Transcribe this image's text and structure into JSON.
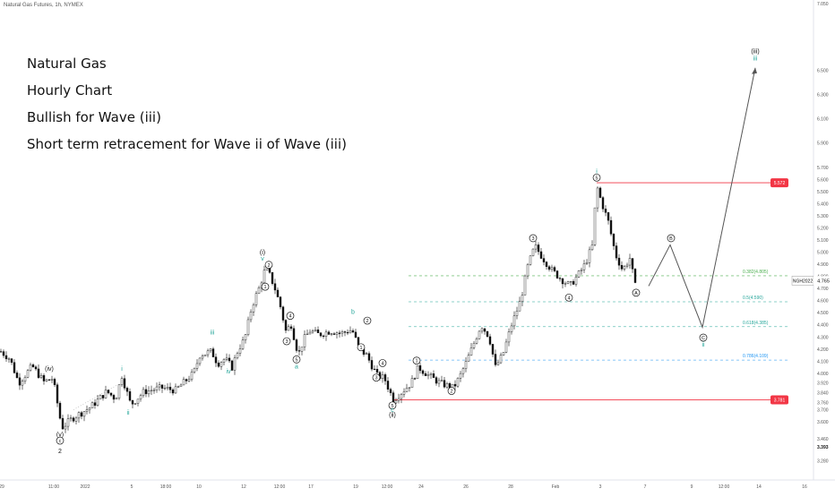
{
  "header": {
    "symbol_line": "Natural Gas Futures, 1h, NYMEX"
  },
  "annotations": [
    "Natural Gas",
    "Hourly Chart",
    "Bullish for Wave (iii)",
    "Short term retracement for Wave ii of Wave (iii)"
  ],
  "colors": {
    "up": "#111111",
    "down": "#111111",
    "red": "#f23645",
    "teal": "#26a69a",
    "blue": "#2196f3",
    "green": "#4caf50",
    "text": "#111111",
    "axis_text": "#555555"
  },
  "chart_data": {
    "type": "candlestick",
    "title": "",
    "xlabel": "",
    "ylabel": "",
    "ylim": [
      3.2,
      7.1
    ],
    "y_ticks": [
      "3.280",
      "3.460",
      "3.600",
      "3.700",
      "3.760",
      "3.840",
      "3.920",
      "4.000",
      "4.100",
      "4.200",
      "4.300",
      "4.400",
      "4.500",
      "4.600",
      "4.700",
      "4.800",
      "4.900",
      "5.000",
      "5.100",
      "5.200",
      "5.300",
      "5.400",
      "5.500",
      "5.600",
      "5.700",
      "5.900",
      "6.100",
      "6.300",
      "6.500",
      "7.050"
    ],
    "y_tick_values": [
      3.28,
      3.46,
      3.6,
      3.7,
      3.76,
      3.84,
      3.92,
      4.0,
      4.1,
      4.2,
      4.3,
      4.4,
      4.5,
      4.6,
      4.7,
      4.8,
      4.9,
      5.0,
      5.1,
      5.2,
      5.3,
      5.4,
      5.5,
      5.6,
      5.7,
      5.9,
      6.1,
      6.3,
      6.5,
      7.05
    ],
    "x_ticks": [
      "29",
      "11:00",
      "2022",
      "5",
      "18:00",
      "10",
      "12",
      "12:00",
      "17",
      "19",
      "12:00",
      "24",
      "26",
      "28",
      "Feb",
      "3",
      "7",
      "9",
      "12:00",
      "14",
      "16"
    ],
    "x_tick_index": [
      2,
      60,
      95,
      147,
      185,
      222,
      272,
      312,
      347,
      397,
      432,
      470,
      520,
      570,
      620,
      670,
      720,
      772,
      808,
      847,
      898
    ],
    "price_path": [
      [
        0,
        4.18
      ],
      [
        10,
        4.12
      ],
      [
        20,
        3.92
      ],
      [
        35,
        4.06
      ],
      [
        48,
        3.93
      ],
      [
        58,
        3.96
      ],
      [
        68,
        3.55
      ],
      [
        80,
        3.63
      ],
      [
        100,
        3.72
      ],
      [
        118,
        3.85
      ],
      [
        128,
        3.79
      ],
      [
        135,
        3.98
      ],
      [
        145,
        3.74
      ],
      [
        160,
        3.85
      ],
      [
        180,
        3.88
      ],
      [
        195,
        3.86
      ],
      [
        215,
        4.0
      ],
      [
        222,
        4.15
      ],
      [
        235,
        4.18
      ],
      [
        242,
        4.08
      ],
      [
        250,
        4.12
      ],
      [
        258,
        4.05
      ],
      [
        265,
        4.2
      ],
      [
        272,
        4.28
      ],
      [
        280,
        4.55
      ],
      [
        288,
        4.7
      ],
      [
        296,
        4.88
      ],
      [
        305,
        4.72
      ],
      [
        312,
        4.55
      ],
      [
        318,
        4.35
      ],
      [
        324,
        4.4
      ],
      [
        332,
        4.15
      ],
      [
        338,
        4.28
      ],
      [
        345,
        4.35
      ],
      [
        355,
        4.32
      ],
      [
        368,
        4.35
      ],
      [
        380,
        4.33
      ],
      [
        392,
        4.36
      ],
      [
        400,
        4.2
      ],
      [
        408,
        4.15
      ],
      [
        415,
        4.05
      ],
      [
        420,
        3.98
      ],
      [
        428,
        3.96
      ],
      [
        438,
        3.78
      ],
      [
        448,
        3.85
      ],
      [
        458,
        3.92
      ],
      [
        466,
        4.05
      ],
      [
        478,
        3.98
      ],
      [
        490,
        3.92
      ],
      [
        505,
        3.88
      ],
      [
        512,
        3.97
      ],
      [
        520,
        4.1
      ],
      [
        528,
        4.25
      ],
      [
        536,
        4.4
      ],
      [
        545,
        4.3
      ],
      [
        552,
        4.05
      ],
      [
        560,
        4.15
      ],
      [
        570,
        4.4
      ],
      [
        580,
        4.6
      ],
      [
        588,
        4.88
      ],
      [
        596,
        5.05
      ],
      [
        605,
        4.95
      ],
      [
        615,
        4.85
      ],
      [
        625,
        4.78
      ],
      [
        635,
        4.72
      ],
      [
        645,
        4.82
      ],
      [
        652,
        4.9
      ],
      [
        660,
        5.05
      ],
      [
        665,
        5.55
      ],
      [
        670,
        5.42
      ],
      [
        678,
        5.25
      ],
      [
        686,
        4.98
      ],
      [
        694,
        4.85
      ],
      [
        702,
        4.95
      ],
      [
        708,
        4.72
      ]
    ],
    "current_price": "4.765",
    "price_tags": [
      {
        "label": "5.572",
        "value": 5.572
      },
      {
        "label": "3.781",
        "value": 3.781
      },
      {
        "label": "NGH2022",
        "value": 4.765
      }
    ],
    "last_axis_label": "3.393",
    "fib_levels": [
      {
        "label": "0.382(4.805)",
        "value": 4.805,
        "color": "#4caf50"
      },
      {
        "label": "0.5(4.590)",
        "value": 4.59,
        "color": "#26a69a"
      },
      {
        "label": "0.618(4.385)",
        "value": 4.385,
        "color": "#26a69a"
      },
      {
        "label": "0.786(4.109)",
        "value": 4.109,
        "color": "#2196f3"
      }
    ],
    "projection": [
      [
        724,
        4.72
      ],
      [
        748,
        5.06
      ],
      [
        784,
        4.38
      ],
      [
        843,
        6.52
      ]
    ],
    "wave_labels": [
      {
        "text": "(iv)",
        "i": 55,
        "v": 4.02,
        "color": "#111111"
      },
      {
        "text": "(v)",
        "i": 67,
        "v": 3.48,
        "color": "#111111"
      },
      {
        "text": "c",
        "i": 67,
        "v": 3.43,
        "color": "#111111",
        "circled": true
      },
      {
        "text": "2",
        "i": 67,
        "v": 3.34,
        "color": "#111111"
      },
      {
        "text": "i",
        "i": 136,
        "v": 4.02,
        "color": "#26a69a"
      },
      {
        "text": "ii",
        "i": 143,
        "v": 3.66,
        "color": "#26a69a"
      },
      {
        "text": "iii",
        "i": 237,
        "v": 4.32,
        "color": "#26a69a"
      },
      {
        "text": "iv",
        "i": 255,
        "v": 4.0,
        "color": "#26a69a"
      },
      {
        "text": "(i)",
        "i": 293,
        "v": 4.98,
        "color": "#111111"
      },
      {
        "text": "v",
        "i": 293,
        "v": 4.93,
        "color": "#26a69a"
      },
      {
        "text": "2",
        "i": 300,
        "v": 4.88,
        "color": "#111111",
        "circled": true
      },
      {
        "text": "1",
        "i": 296,
        "v": 4.7,
        "color": "#111111",
        "circled": true
      },
      {
        "text": "3",
        "i": 320,
        "v": 4.25,
        "color": "#111111",
        "circled": true
      },
      {
        "text": "4",
        "i": 324,
        "v": 4.46,
        "color": "#111111",
        "circled": true
      },
      {
        "text": "5",
        "i": 331,
        "v": 4.1,
        "color": "#111111",
        "circled": true
      },
      {
        "text": "a",
        "i": 331,
        "v": 4.04,
        "color": "#26a69a"
      },
      {
        "text": "b",
        "i": 394,
        "v": 4.49,
        "color": "#26a69a"
      },
      {
        "text": "2",
        "i": 410,
        "v": 4.42,
        "color": "#111111",
        "circled": true
      },
      {
        "text": "1",
        "i": 403,
        "v": 4.2,
        "color": "#111111",
        "circled": true
      },
      {
        "text": "3",
        "i": 420,
        "v": 3.95,
        "color": "#111111",
        "circled": true
      },
      {
        "text": "4",
        "i": 427,
        "v": 4.07,
        "color": "#111111",
        "circled": true
      },
      {
        "text": "5",
        "i": 438,
        "v": 3.72,
        "color": "#111111",
        "circled": true
      },
      {
        "text": "c",
        "i": 438,
        "v": 3.68,
        "color": "#26a69a"
      },
      {
        "text": "(ii)",
        "i": 438,
        "v": 3.64,
        "color": "#111111"
      },
      {
        "text": "1",
        "i": 465,
        "v": 4.09,
        "color": "#111111",
        "circled": true
      },
      {
        "text": "2",
        "i": 504,
        "v": 3.84,
        "color": "#111111",
        "circled": true
      },
      {
        "text": "3",
        "i": 595,
        "v": 5.1,
        "color": "#111111",
        "circled": true
      },
      {
        "text": "4",
        "i": 635,
        "v": 4.61,
        "color": "#111111",
        "circled": true
      },
      {
        "text": "i",
        "i": 666,
        "v": 5.65,
        "color": "#26a69a"
      },
      {
        "text": "5",
        "i": 666,
        "v": 5.6,
        "color": "#111111",
        "circled": true
      },
      {
        "text": "A",
        "i": 710,
        "v": 4.65,
        "color": "#111111",
        "circled": true
      },
      {
        "text": "B",
        "i": 749,
        "v": 5.1,
        "color": "#111111",
        "circled": true
      },
      {
        "text": "C",
        "i": 785,
        "v": 4.28,
        "color": "#111111",
        "circled": true
      },
      {
        "text": "ii",
        "i": 785,
        "v": 4.22,
        "color": "#26a69a"
      },
      {
        "text": "(iii)",
        "i": 843,
        "v": 6.64,
        "color": "#111111"
      },
      {
        "text": "iii",
        "i": 843,
        "v": 6.58,
        "color": "#26a69a"
      }
    ]
  }
}
